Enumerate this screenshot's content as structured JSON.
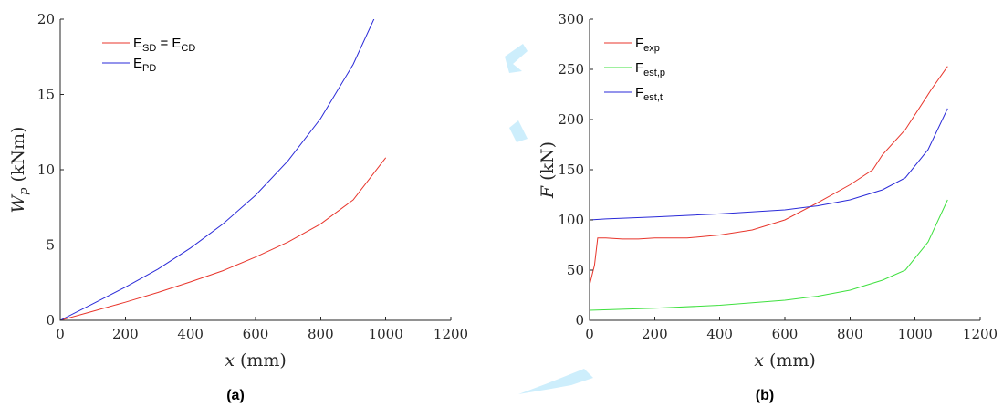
{
  "watermark_color": "#cdeefc",
  "chart_data": [
    {
      "type": "line",
      "panel_label": "(a)",
      "xlabel": {
        "var": "x",
        "unit": " (mm)"
      },
      "ylabel": {
        "var": "W",
        "sub": "p",
        "unit": " (kNm)"
      },
      "xlim": [
        0,
        1200
      ],
      "ylim": [
        0,
        20
      ],
      "xticks": [
        0,
        200,
        400,
        600,
        800,
        1000,
        1200
      ],
      "yticks": [
        0,
        5,
        10,
        15,
        20
      ],
      "legend_position": "top-left",
      "series": [
        {
          "name": "E",
          "sub": "SD",
          "mid": " = E",
          "sub2": "CD",
          "color": "#e8352b",
          "x": [
            0,
            100,
            200,
            300,
            400,
            500,
            600,
            700,
            800,
            900,
            1000
          ],
          "y": [
            0,
            0.6,
            1.2,
            1.85,
            2.55,
            3.3,
            4.2,
            5.2,
            6.4,
            8.0,
            10.8
          ]
        },
        {
          "name": "E",
          "sub": "PD",
          "color": "#2a2ad8",
          "x": [
            0,
            100,
            200,
            300,
            400,
            500,
            600,
            700,
            800,
            900,
            970
          ],
          "y": [
            0,
            1.1,
            2.2,
            3.4,
            4.8,
            6.4,
            8.3,
            10.6,
            13.4,
            17.0,
            20.3
          ]
        }
      ]
    },
    {
      "type": "line",
      "panel_label": "(b)",
      "xlabel": {
        "var": "x",
        "unit": " (mm)"
      },
      "ylabel": {
        "var": "F",
        "sub": "",
        "unit": " (kN)"
      },
      "xlim": [
        0,
        1200
      ],
      "ylim": [
        0,
        300
      ],
      "xticks": [
        0,
        200,
        400,
        600,
        800,
        1000,
        1200
      ],
      "yticks": [
        0,
        50,
        100,
        150,
        200,
        250,
        300
      ],
      "legend_position": "top-left",
      "series": [
        {
          "name": "F",
          "sub": "exp",
          "color": "#e8352b",
          "x": [
            0,
            15,
            25,
            50,
            100,
            150,
            200,
            300,
            400,
            500,
            600,
            700,
            800,
            870,
            900,
            970,
            1050,
            1100
          ],
          "y": [
            35,
            55,
            82,
            82,
            81,
            81,
            82,
            82,
            85,
            90,
            100,
            117,
            135,
            150,
            165,
            190,
            230,
            253
          ]
        },
        {
          "name": "F",
          "sub": "est,p",
          "color": "#3ee03e",
          "x": [
            0,
            200,
            400,
            600,
            700,
            800,
            900,
            970,
            1040,
            1100
          ],
          "y": [
            10,
            12,
            15,
            20,
            24,
            30,
            40,
            50,
            78,
            120
          ]
        },
        {
          "name": "F",
          "sub": "est,t",
          "color": "#2a2ad8",
          "x": [
            0,
            50,
            200,
            400,
            600,
            700,
            800,
            900,
            970,
            1040,
            1100
          ],
          "y": [
            100,
            101,
            103,
            106,
            110,
            114,
            120,
            130,
            142,
            170,
            211
          ]
        }
      ]
    }
  ]
}
